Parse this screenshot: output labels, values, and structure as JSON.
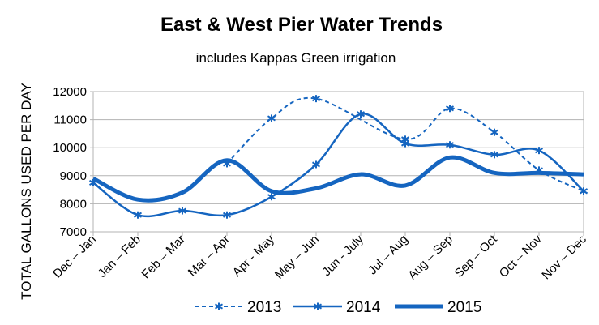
{
  "chart_data": {
    "type": "line",
    "title": "East & West Pier Water Trends",
    "subtitle": "includes Kappas Green irrigation",
    "xlabel": "",
    "ylabel": "TOTAL GALLONS USED PER DAY",
    "ylim": [
      7000,
      12000
    ],
    "yticks": [
      "7000",
      "8000",
      "9000",
      "10000",
      "11000",
      "12000"
    ],
    "grid": true,
    "legend_position": "bottom",
    "smooth": true,
    "line_color": "#1565c0",
    "categories": [
      "Dec – Jan",
      "Jan – Feb",
      "Feb – Mar",
      "Mar – Apr",
      "Apr - May",
      "May – Jun",
      "Jun - July",
      "Jul – Aug",
      "Aug – Sep",
      "Sep – Oct",
      "Oct – Nov",
      "Nov – Dec"
    ],
    "series": [
      {
        "name": "2013",
        "style": "dashed",
        "marker": "asterisk",
        "values": [
          null,
          null,
          null,
          9430,
          11050,
          11750,
          null,
          10300,
          11400,
          10550,
          9200,
          8450
        ]
      },
      {
        "name": "2014",
        "style": "solid",
        "marker": "asterisk",
        "values": [
          8750,
          7600,
          7750,
          7600,
          8250,
          9400,
          11200,
          10150,
          10100,
          9750,
          9900,
          8450
        ]
      },
      {
        "name": "2015",
        "style": "thick",
        "marker": "none",
        "values": [
          8900,
          8150,
          8400,
          9550,
          8450,
          8550,
          9050,
          8650,
          9650,
          9100,
          9100,
          9050
        ]
      }
    ]
  }
}
